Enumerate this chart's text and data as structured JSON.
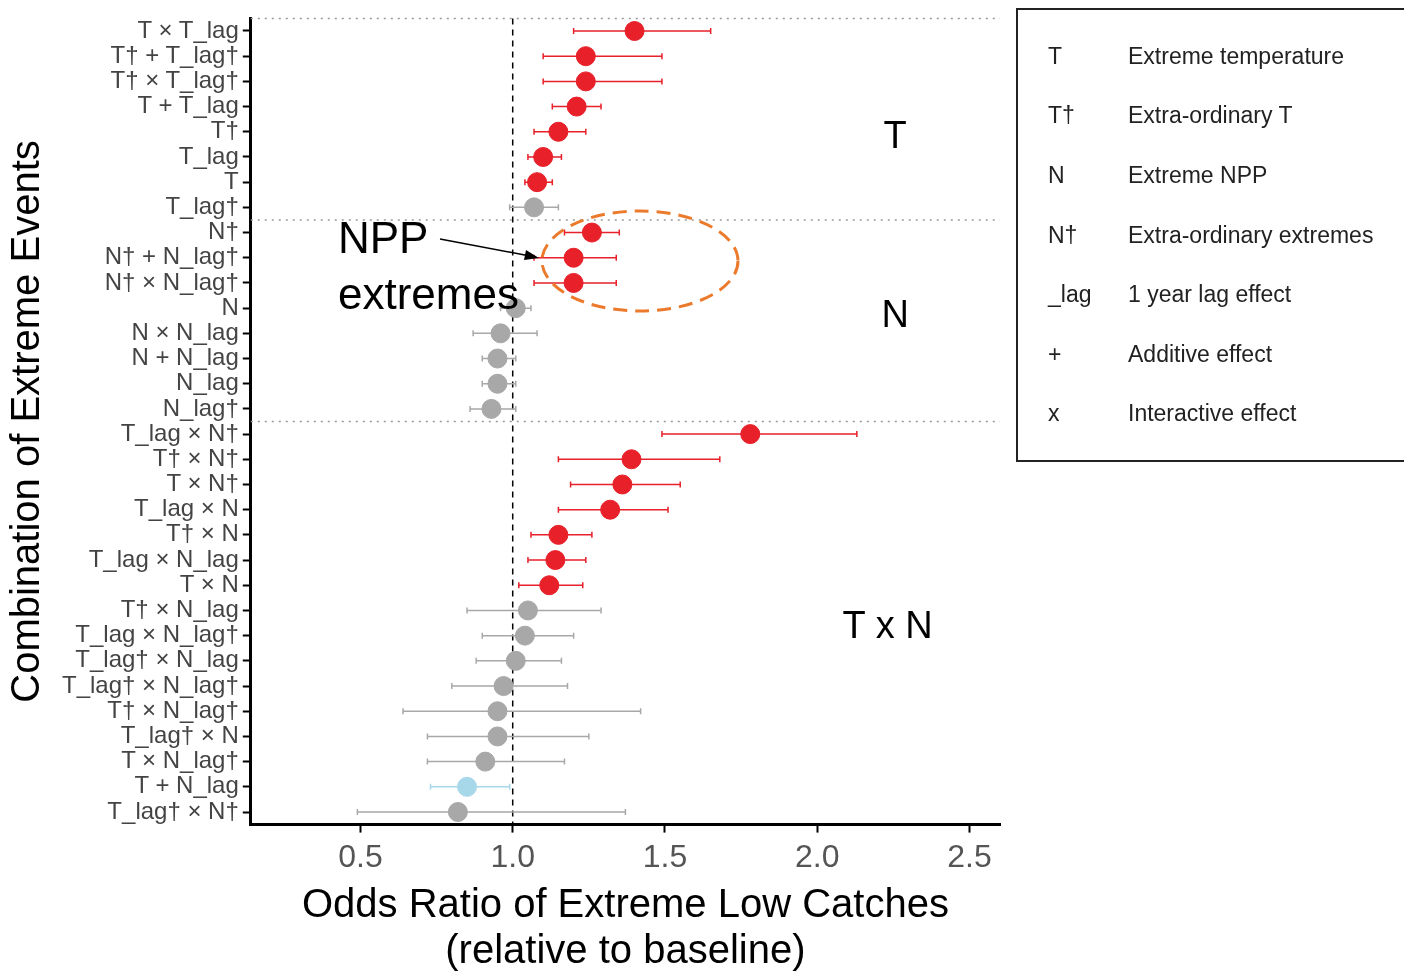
{
  "chart_data": [
    {
      "type": "scatter",
      "orientation": "horizontal",
      "xlabel": "Odds Ratio of Extreme Low Catches\n(relative to baseline)",
      "ylabel": "Combination of Extreme Events",
      "categories": [
        "T × T_lag",
        "T† + T_lag†",
        "T† × T_lag†",
        "T + T_lag",
        "T†",
        "T_lag",
        "T",
        "T_lag†",
        "N†",
        "N† + N_lag†",
        "N† × N_lag†",
        "N",
        "N × N_lag",
        "N + N_lag",
        "N_lag",
        "N_lag†",
        "T_lag × N†",
        "T† × N†",
        "T × N†",
        "T_lag × N",
        "T† × N",
        "T_lag × N_lag",
        "T × N",
        "T† × N_lag",
        "T_lag × N_lag†",
        "T_lag† × N_lag",
        "T_lag† × N_lag†",
        "T† × N_lag†",
        "T_lag† × N",
        "T × N_lag†",
        "T + N_lag",
        "T_lag† × N†"
      ],
      "values": [
        1.4,
        1.24,
        1.24,
        1.21,
        1.15,
        1.1,
        1.08,
        1.07,
        1.26,
        1.2,
        1.2,
        1.01,
        0.96,
        0.95,
        0.95,
        0.93,
        1.78,
        1.39,
        1.36,
        1.32,
        1.15,
        1.14,
        1.12,
        1.05,
        1.04,
        1.01,
        0.97,
        0.95,
        0.95,
        0.91,
        0.85,
        0.82
      ],
      "errors": [
        [
          1.2,
          1.65
        ],
        [
          1.1,
          1.49
        ],
        [
          1.1,
          1.49
        ],
        [
          1.13,
          1.29
        ],
        [
          1.07,
          1.24
        ],
        [
          1.05,
          1.16
        ],
        [
          1.04,
          1.13
        ],
        [
          0.99,
          1.15
        ],
        [
          1.17,
          1.35
        ],
        [
          1.07,
          1.34
        ],
        [
          1.07,
          1.34
        ],
        [
          0.96,
          1.06
        ],
        [
          0.87,
          1.08
        ],
        [
          0.9,
          1.01
        ],
        [
          0.9,
          1.01
        ],
        [
          0.86,
          1.01
        ],
        [
          1.49,
          2.13
        ],
        [
          1.15,
          1.68
        ],
        [
          1.19,
          1.55
        ],
        [
          1.15,
          1.51
        ],
        [
          1.06,
          1.26
        ],
        [
          1.05,
          1.24
        ],
        [
          1.02,
          1.23
        ],
        [
          0.85,
          1.29
        ],
        [
          0.9,
          1.2
        ],
        [
          0.88,
          1.16
        ],
        [
          0.8,
          1.18
        ],
        [
          0.64,
          1.42
        ],
        [
          0.72,
          1.25
        ],
        [
          0.72,
          1.17
        ],
        [
          0.73,
          0.99
        ],
        [
          0.49,
          1.37
        ]
      ],
      "colors": [
        "#e8202a",
        "#e8202a",
        "#e8202a",
        "#e8202a",
        "#e8202a",
        "#e8202a",
        "#e8202a",
        "#a8a8a8",
        "#e8202a",
        "#e8202a",
        "#e8202a",
        "#a8a8a8",
        "#a8a8a8",
        "#a8a8a8",
        "#a8a8a8",
        "#a8a8a8",
        "#e8202a",
        "#e8202a",
        "#e8202a",
        "#e8202a",
        "#e8202a",
        "#e8202a",
        "#e8202a",
        "#a8a8a8",
        "#a8a8a8",
        "#a8a8a8",
        "#a8a8a8",
        "#a8a8a8",
        "#a8a8a8",
        "#a8a8a8",
        "#a6d8ea",
        "#a8a8a8"
      ],
      "xlim": [
        0.14,
        2.6
      ],
      "xticks": [
        0.5,
        {
          "value": 1,
          "label": "1.0"
        },
        1.5,
        {
          "value": 2,
          "label": "2.0"
        },
        2.5
      ],
      "grid": false,
      "legend": false,
      "marker": "circle",
      "ref_lines": [
        {
          "axis": "x",
          "value": 1,
          "line_style": "dashed",
          "color": "#000000"
        }
      ],
      "annotations": [
        "T",
        "N",
        "T x N",
        "NPP\nextremes"
      ]
    },
    {
      "type": "other",
      "annotations": [
        "T",
        "Extreme temperature",
        "T†",
        "Extra-ordinary T",
        "N",
        "Extreme NPP",
        "N†",
        "Extra-ordinary extremes",
        "_lag",
        "1 year lag effect",
        "+",
        "Additive effect",
        "x",
        "Interactive effect"
      ]
    }
  ]
}
